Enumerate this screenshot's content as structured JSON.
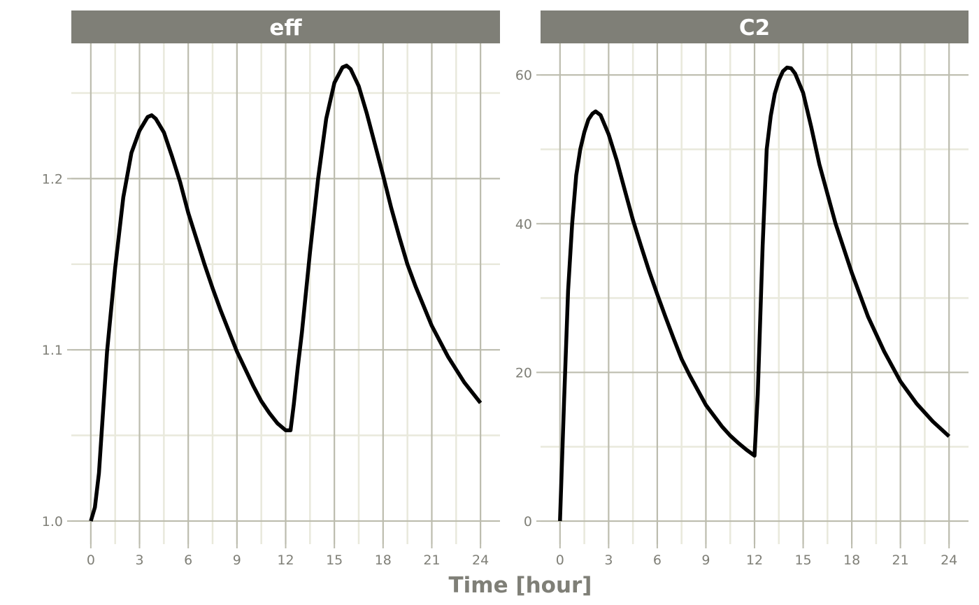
{
  "chart_data": [
    {
      "type": "line",
      "facet": "eff",
      "xlabel": "Time [hour]",
      "ylabel": "",
      "xlim": [
        -1.2,
        25.2
      ],
      "ylim": [
        0.9865,
        1.279
      ],
      "xticks": [
        0,
        3,
        6,
        9,
        12,
        15,
        18,
        21,
        24
      ],
      "yticks": [
        1.0,
        1.1,
        1.2
      ],
      "ytick_labels": [
        "1.0",
        "1.1",
        "1.2"
      ],
      "yminor": [
        1.05,
        1.15,
        1.25
      ],
      "grid": true,
      "x": [
        0,
        0.25,
        0.5,
        1,
        1.5,
        2,
        2.5,
        3,
        3.5,
        3.75,
        4,
        4.5,
        5,
        5.5,
        6,
        6.5,
        7,
        7.5,
        8,
        9,
        10,
        10.5,
        11,
        11.5,
        12,
        12.3,
        12.5,
        12.75,
        13,
        13.5,
        14,
        14.5,
        15,
        15.5,
        15.75,
        16,
        16.5,
        17,
        17.5,
        18,
        18.5,
        19,
        19.5,
        20,
        21,
        22,
        23,
        24
      ],
      "y": [
        1.0,
        1.008,
        1.028,
        1.099,
        1.148,
        1.189,
        1.215,
        1.228,
        1.236,
        1.237,
        1.235,
        1.227,
        1.213,
        1.198,
        1.18,
        1.165,
        1.15,
        1.136,
        1.123,
        1.099,
        1.079,
        1.07,
        1.063,
        1.057,
        1.053,
        1.053,
        1.068,
        1.09,
        1.11,
        1.157,
        1.2,
        1.235,
        1.256,
        1.265,
        1.266,
        1.264,
        1.254,
        1.238,
        1.22,
        1.202,
        1.183,
        1.166,
        1.15,
        1.137,
        1.114,
        1.096,
        1.081,
        1.069
      ]
    },
    {
      "type": "line",
      "facet": "C2",
      "xlabel": "Time [hour]",
      "ylabel": "",
      "xlim": [
        -1.2,
        25.2
      ],
      "ylim": [
        -3.1,
        64.25
      ],
      "xticks": [
        0,
        3,
        6,
        9,
        12,
        15,
        18,
        21,
        24
      ],
      "yticks": [
        0,
        20,
        40,
        60
      ],
      "ytick_labels": [
        "0",
        "20",
        "40",
        "60"
      ],
      "yminor": [
        10,
        30,
        50
      ],
      "grid": true,
      "x": [
        0,
        0.25,
        0.5,
        0.75,
        1,
        1.25,
        1.5,
        1.75,
        2,
        2.2,
        2.5,
        3,
        3.5,
        4,
        4.5,
        5,
        5.5,
        6,
        6.5,
        7,
        7.5,
        8,
        9,
        10,
        10.5,
        11,
        11.5,
        12,
        12.2,
        12.5,
        12.75,
        13,
        13.25,
        13.5,
        13.75,
        14,
        14.25,
        14.5,
        15,
        15.5,
        16,
        17,
        18,
        19,
        20,
        21,
        22,
        23,
        24
      ],
      "y": [
        0,
        16,
        31,
        40,
        46.5,
        50,
        52.3,
        54,
        54.8,
        55.1,
        54.6,
        52,
        48.5,
        44.5,
        40.5,
        37,
        33.6,
        30.5,
        27.5,
        24.6,
        21.8,
        19.6,
        15.6,
        12.7,
        11.5,
        10.5,
        9.6,
        8.8,
        17,
        37,
        50,
        54.5,
        57.5,
        59.3,
        60.5,
        61,
        60.9,
        60.2,
        57.6,
        53,
        48,
        40,
        33.4,
        27.5,
        22.8,
        18.8,
        15.8,
        13.4,
        11.4
      ]
    }
  ],
  "xlabel": "Time [hour]",
  "colors": {
    "strip": "#7f7f77",
    "strip_text": "#ffffff",
    "grid_major": "#bcbcae",
    "grid_minor": "#e9e9dc",
    "axis_text": "#7f7f77",
    "line": "#000000"
  }
}
